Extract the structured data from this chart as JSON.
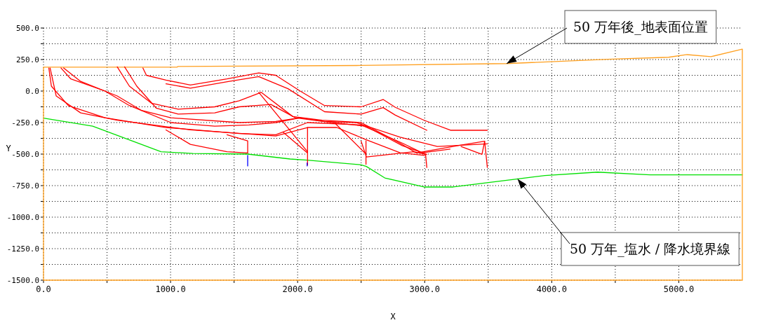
{
  "chart_data": {
    "type": "line",
    "xlabel": "X",
    "ylabel": "Y",
    "grid": true,
    "marker": "none",
    "line_style": "solid",
    "xlim": [
      0,
      5500
    ],
    "ylim": [
      -1500,
      500
    ],
    "xticks": [
      {
        "value": 0,
        "label": "0.0"
      },
      {
        "value": 500,
        "label": null
      },
      {
        "value": 1000,
        "label": "1000.0"
      },
      {
        "value": 1500,
        "label": null
      },
      {
        "value": 2000,
        "label": "2000.0"
      },
      {
        "value": 2500,
        "label": null
      },
      {
        "value": 3000,
        "label": "3000.0"
      },
      {
        "value": 3500,
        "label": null
      },
      {
        "value": 4000,
        "label": "4000.0"
      },
      {
        "value": 4500,
        "label": null
      },
      {
        "value": 5000,
        "label": "5000.0"
      }
    ],
    "yticks": [
      {
        "value": -1500,
        "label": "-1500.0"
      },
      {
        "value": -1375,
        "label": null
      },
      {
        "value": -1250,
        "label": "-1250.0"
      },
      {
        "value": -1125,
        "label": null
      },
      {
        "value": -1000,
        "label": "-1000.0"
      },
      {
        "value": -875,
        "label": null
      },
      {
        "value": -750,
        "label": "-750.0"
      },
      {
        "value": -625,
        "label": null
      },
      {
        "value": -500,
        "label": "-500.0"
      },
      {
        "value": -375,
        "label": null
      },
      {
        "value": -250,
        "label": "-250.0"
      },
      {
        "value": -125,
        "label": null
      },
      {
        "value": 0,
        "label": "0.0"
      },
      {
        "value": 125,
        "label": null
      },
      {
        "value": 250,
        "label": "250.0"
      },
      {
        "value": 375,
        "label": null
      },
      {
        "value": 500,
        "label": "500.0"
      }
    ],
    "annotations": [
      {
        "text": "50 万年後_地表面位置",
        "x": 3645,
        "y": 218
      },
      {
        "text": "50 万年_塩水 / 降水境界線",
        "x": 3731,
        "y": -697
      }
    ],
    "series": [
      {
        "color": "#ffa020",
        "x": [
          0,
          1050,
          1060,
          2500,
          3645,
          4441,
          4919,
          5065,
          5253,
          5500
        ],
        "values": [
          190,
          190,
          195,
          203,
          218,
          252,
          268,
          289,
          273,
          332
        ]
      },
      {
        "color": "#00e000",
        "x": [
          0,
          387,
          925,
          1175,
          1607,
          1941,
          2075,
          2500,
          2541,
          2686,
          2995,
          3224,
          3946,
          4360,
          4774,
          5500
        ],
        "values": [
          -215,
          -279,
          -481,
          -495,
          -500,
          -539,
          -548,
          -585,
          -598,
          -689,
          -761,
          -761,
          -670,
          -643,
          -665,
          -665
        ]
      },
      {
        "color": "#ff0000",
        "x": [
          782,
          810,
          964,
          1156,
          1444,
          1694,
          1828,
          2020,
          2212,
          2500,
          2673,
          2769,
          2996,
          3203,
          3493
        ],
        "values": [
          183,
          125,
          87,
          48,
          96,
          144,
          125,
          0,
          -115,
          -125,
          -67,
          -129,
          -232,
          -311,
          -311
        ]
      },
      {
        "color": "#ff0000",
        "x": [
          964,
          1156,
          1463,
          1694,
          1924,
          2212,
          2500,
          2673,
          2769,
          3017
        ],
        "values": [
          58,
          23,
          77,
          115,
          19,
          -164,
          -183,
          -131,
          -191,
          -311
        ]
      },
      {
        "color": "#ff0000",
        "x": [
          580,
          676,
          849,
          1060,
          1348,
          1540,
          1713,
          1962,
          2193,
          2500,
          2807,
          2934,
          3286,
          3472
        ],
        "values": [
          192,
          39,
          -96,
          -144,
          -125,
          -77,
          -10,
          -202,
          -231,
          -250,
          -414,
          -491,
          -429,
          -398
        ]
      },
      {
        "color": "#ff0000",
        "x": [
          638,
          734,
          887,
          1060,
          1348,
          1540,
          1790,
          1982,
          2270,
          2538,
          2823,
          3017
        ],
        "values": [
          192,
          39,
          -135,
          -183,
          -173,
          -125,
          -106,
          -212,
          -250,
          -279,
          -433,
          -502
        ]
      },
      {
        "color": "#ff0000",
        "x": [
          138,
          215,
          484,
          676,
          1002,
          1348,
          1617,
          1828,
          2020,
          2212,
          2462,
          2807,
          3100,
          3493
        ],
        "values": [
          183,
          96,
          0,
          -115,
          -250,
          -279,
          -269,
          -250,
          -212,
          -241,
          -250,
          -366,
          -440,
          -419
        ]
      },
      {
        "color": "#ff0000",
        "x": [
          42,
          62,
          196,
          484,
          964,
          1540,
          1828,
          2078,
          2308,
          2500,
          2826,
          2980,
          3200
        ],
        "values": [
          183,
          39,
          -116,
          -212,
          -289,
          -337,
          -346,
          -250,
          -260,
          -269,
          -414,
          -490,
          -460
        ]
      },
      {
        "color": "#ff0000",
        "x": [
          52,
          100,
          292,
          580,
          1156,
          1828,
          2078,
          2308,
          2538,
          2807,
          3000
        ],
        "values": [
          183,
          -39,
          -173,
          -231,
          -308,
          -356,
          -289,
          -289,
          -385,
          -490,
          -510
        ]
      },
      {
        "color": "#ff0000",
        "x": [
          158,
          292,
          580,
          772,
          1002,
          1540,
          1828,
          2020
        ],
        "values": [
          183,
          77,
          -39,
          -154,
          -212,
          -250,
          -241,
          -212
        ]
      },
      {
        "color": "#ff0000",
        "x": [
          964,
          1156,
          1444,
          1607,
          1607,
          1444
        ],
        "values": [
          -308,
          -423,
          -481,
          -491,
          -395,
          -347
        ]
      },
      {
        "color": "#ff0000",
        "x": [
          1886,
          2078,
          2078,
          2078
        ],
        "values": [
          -327,
          -491,
          -289,
          -587
        ]
      },
      {
        "color": "#ff0000",
        "x": [
          1694,
          2078
        ],
        "values": [
          -10,
          -481
        ]
      },
      {
        "color": "#ff0000",
        "x": [
          2289,
          2538,
          2538,
          2538
        ],
        "values": [
          -250,
          -500,
          -395,
          -581
        ]
      },
      {
        "color": "#ff0000",
        "x": [
          2500,
          2541,
          2914,
          3007,
          3017
        ],
        "values": [
          -398,
          -523,
          -481,
          -502,
          -606
        ]
      },
      {
        "color": "#ff0000",
        "x": [
          3286,
          3451,
          3472,
          3493
        ],
        "values": [
          -440,
          -502,
          -398,
          -606
        ]
      },
      {
        "color": "#0000ff",
        "x": [
          1607,
          1607
        ],
        "values": [
          -510,
          -594
        ]
      },
      {
        "color": "#0000ff",
        "x": [
          2075,
          2075
        ],
        "values": [
          -570,
          -594
        ]
      }
    ]
  }
}
